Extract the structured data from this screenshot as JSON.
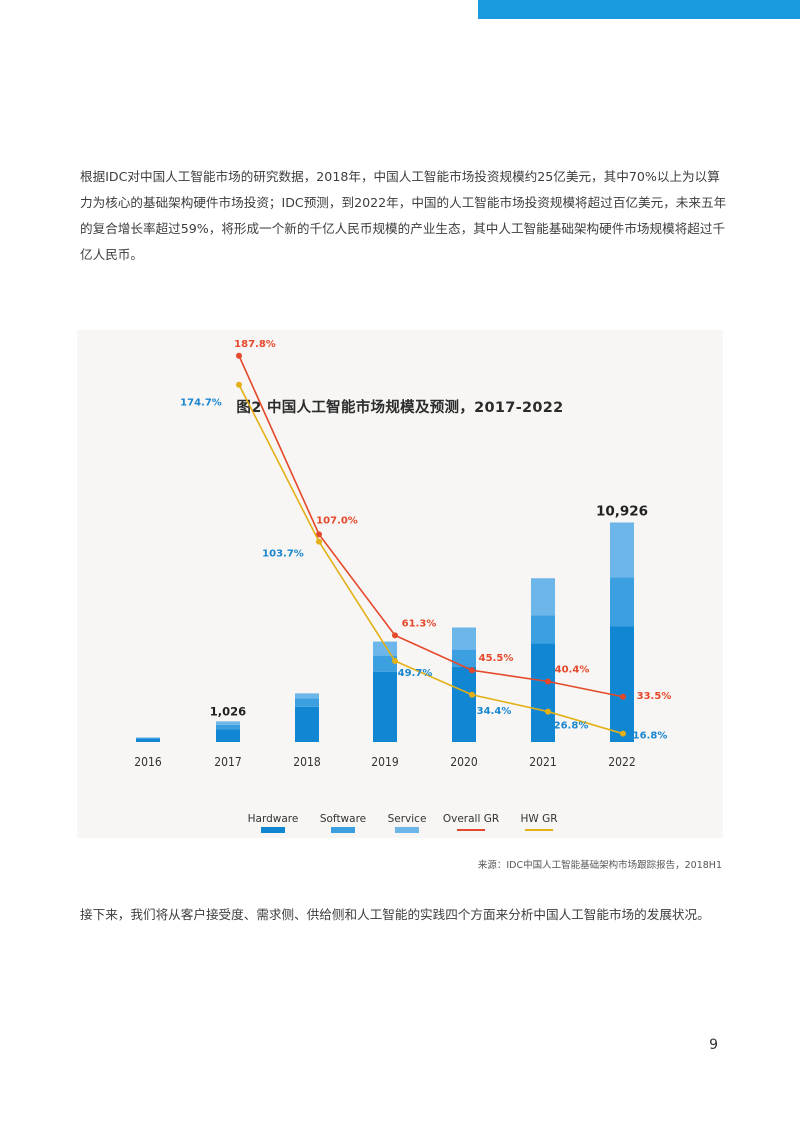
{
  "paragraph_1": "根据IDC对中国人工智能市场的研究数据，2018年，中国人工智能市场投资规模约25亿美元，其中70%以上为以算力为核心的基础架构硬件市场投资；IDC预测，到2022年，中国的人工智能市场投资规模将超过百亿美元，未来五年的复合增长率超过59%，将形成一个新的千亿人民币规模的产业生态，其中人工智能基础架构硬件市场规模将超过千亿人民币。",
  "source": "来源：IDC中国人工智能基础架构市场跟踪报告，2018H1",
  "paragraph_2": "接下来，我们将从客户接受度、需求侧、供给侧和人工智能的实践四个方面来分析中国人工智能市场的发展状况。",
  "page_number": "9",
  "colors": {
    "hardware": "#1187d4",
    "software": "#3b9fe0",
    "service": "#6cb6e9",
    "overall_gr": "#e5482a",
    "hw_gr": "#e3b015",
    "hw_label": "#1a86d0",
    "accent_bar": "#1a9be0"
  },
  "chart_data": {
    "type": "bar",
    "title": "图2 中国人工智能市场规模及预测，2017-2022",
    "categories": [
      "2016",
      "2017",
      "2018",
      "2019",
      "2020",
      "2021",
      "2022"
    ],
    "stacked": true,
    "ylim": [
      0,
      11000
    ],
    "series": [
      {
        "name": "Hardware",
        "values": [
          150,
          640,
          1750,
          3500,
          3750,
          4900,
          5750
        ]
      },
      {
        "name": "Software",
        "values": [
          60,
          220,
          420,
          800,
          850,
          1400,
          2450
        ]
      },
      {
        "name": "Service",
        "values": [
          20,
          166,
          250,
          700,
          1100,
          1850,
          2726
        ]
      }
    ],
    "total_labels": [
      {
        "category": "2017",
        "text": "1,026"
      },
      {
        "category": "2022",
        "text": "10,926"
      }
    ],
    "lines": [
      {
        "name": "Overall GR",
        "values": [
          null,
          187.8,
          107.0,
          61.3,
          45.5,
          40.4,
          33.5
        ],
        "labels": [
          "",
          "187.8%",
          "107.0%",
          "61.3%",
          "45.5%",
          "40.4%",
          "33.5%"
        ]
      },
      {
        "name": "HW GR",
        "values": [
          null,
          174.7,
          103.7,
          49.7,
          34.4,
          26.8,
          16.8
        ],
        "labels": [
          "",
          "174.7%",
          "103.7%",
          "49.7%",
          "34.4%",
          "26.8%",
          "16.8%"
        ]
      }
    ],
    "legend": [
      "Hardware",
      "Software",
      "Service",
      "Overall GR",
      "HW GR"
    ],
    "legend_position": "bottom",
    "grid": false
  }
}
